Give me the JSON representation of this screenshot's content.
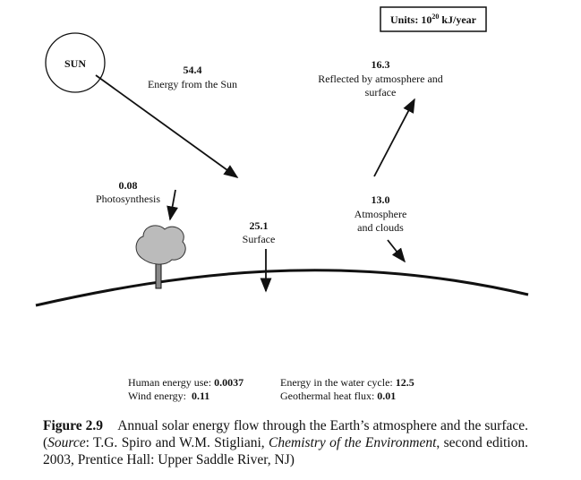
{
  "units": {
    "prefix": "Units: 10",
    "exponent": "20",
    "suffix": " kJ/year"
  },
  "sun": "SUN",
  "flows": {
    "sun": {
      "value": "54.4",
      "label": "Energy from the Sun"
    },
    "reflected": {
      "value": "16.3",
      "label1": "Reflected by atmosphere and",
      "label2": "surface"
    },
    "photosynthesis": {
      "value": "0.08",
      "label": "Photosynthesis"
    },
    "surface": {
      "value": "25.1",
      "label": "Surface"
    },
    "atmosphere": {
      "value": "13.0",
      "label1": "Atmosphere",
      "label2": "and clouds"
    }
  },
  "others": [
    {
      "label": "Human energy use: ",
      "value": "0.0037"
    },
    {
      "label": "Energy in the water cycle: ",
      "value": "12.5"
    },
    {
      "label": "Wind energy:  ",
      "value": "0.11"
    },
    {
      "label": "Geothermal heat flux: ",
      "value": "0.01"
    }
  ],
  "caption": {
    "number": "Figure 2.9",
    "text": "Annual solar energy flow through the Earth’s atmosphere and the surface. (",
    "source_label": "Source",
    "source_text": ": T.G. Spiro and W.M. Stigliani, ",
    "book": "Chemistry of the Environment",
    "rest": ", second edition. 2003, Prentice Hall: Upper Saddle River, NJ)"
  }
}
